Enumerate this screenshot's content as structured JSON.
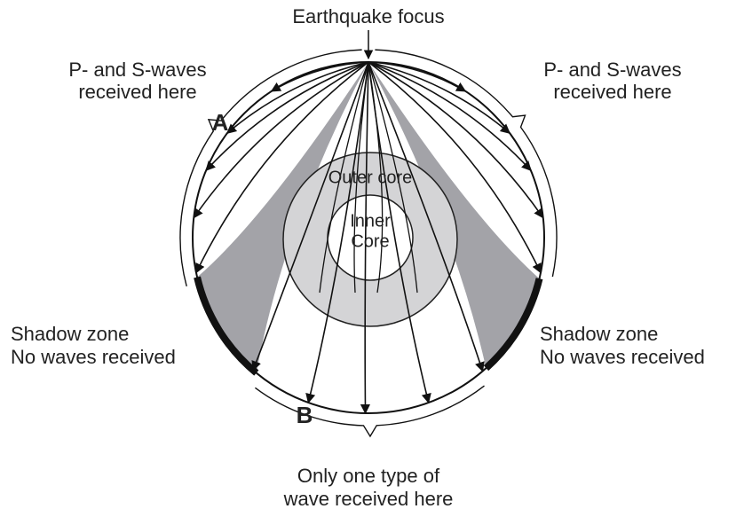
{
  "focus_label": "Earthquake focus",
  "upper_left": {
    "lines": [
      "P- and S-waves",
      "received here"
    ]
  },
  "upper_right": {
    "lines": [
      "P- and S-waves",
      "received here"
    ]
  },
  "point_a": "A",
  "point_b": "B",
  "outer_core": "Outer core",
  "inner_core": {
    "lines": [
      "Inner",
      "Core"
    ]
  },
  "shadow_left": {
    "lines": [
      "Shadow zone",
      "No waves received"
    ]
  },
  "shadow_right": {
    "lines": [
      "Shadow zone",
      "No waves received"
    ]
  },
  "bottom": {
    "lines": [
      "Only one type of",
      "wave received here"
    ]
  }
}
